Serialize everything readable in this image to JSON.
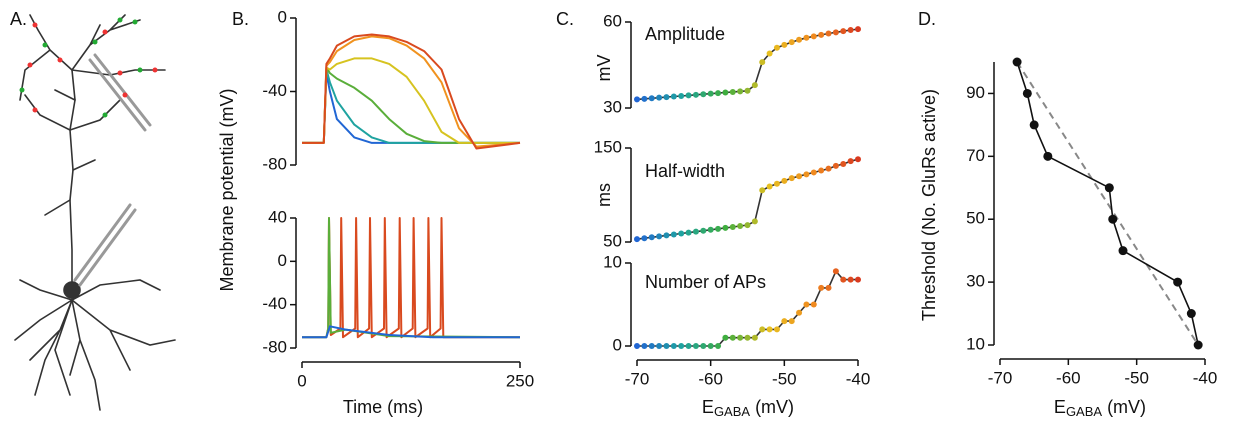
{
  "panels": [
    "A.",
    "B.",
    "C.",
    "D."
  ],
  "chart_data": [
    {
      "type": "line",
      "ylabel": "Membrane potential (mV)",
      "x": [
        0,
        25,
        28,
        32,
        40,
        60,
        80,
        100,
        120,
        140,
        160,
        180,
        200,
        250
      ],
      "xlim": [
        0,
        250
      ],
      "ylim": [
        -80,
        0
      ],
      "yticks": [
        0,
        -40,
        -80
      ],
      "series": [
        {
          "color": "#2166d4",
          "values": [
            -68,
            -68,
            -30,
            -40,
            -55,
            -65,
            -68,
            -68,
            -68,
            -68,
            -68,
            -68,
            -68,
            -68
          ]
        },
        {
          "color": "#1fa3a0",
          "values": [
            -68,
            -68,
            -28,
            -35,
            -45,
            -58,
            -65,
            -68,
            -68,
            -68,
            -68,
            -68,
            -68,
            -68
          ]
        },
        {
          "color": "#5aae3a",
          "values": [
            -68,
            -68,
            -27,
            -30,
            -33,
            -38,
            -45,
            -55,
            -63,
            -67,
            -68,
            -68,
            -68,
            -68
          ]
        },
        {
          "color": "#d6c320",
          "values": [
            -68,
            -68,
            -27,
            -28,
            -25,
            -22,
            -22,
            -25,
            -32,
            -45,
            -62,
            -68,
            -68,
            -68
          ]
        },
        {
          "color": "#f0921f",
          "values": [
            -68,
            -68,
            -26,
            -24,
            -18,
            -12,
            -10,
            -11,
            -15,
            -22,
            -35,
            -60,
            -70,
            -68
          ]
        },
        {
          "color": "#d94a1f",
          "values": [
            -68,
            -68,
            -25,
            -22,
            -15,
            -10,
            -9,
            -10,
            -13,
            -18,
            -28,
            -55,
            -71,
            -68
          ]
        }
      ]
    },
    {
      "type": "line",
      "xlabel": "Time (ms)",
      "xlim": [
        0,
        250
      ],
      "xticks": [
        0,
        250
      ],
      "ylim": [
        -80,
        40
      ],
      "yticks": [
        40,
        0,
        -40,
        -80
      ],
      "series": [
        {
          "color": "#d94a1f",
          "x": [
            0,
            28,
            30,
            31,
            33,
            44,
            45,
            47,
            61,
            62,
            64,
            77,
            78,
            80,
            94,
            95,
            97,
            111,
            112,
            114,
            127,
            128,
            130,
            144,
            145,
            147,
            159,
            160,
            162,
            180,
            250
          ],
          "values": [
            -70,
            -70,
            -62,
            40,
            -68,
            -62,
            40,
            -70,
            -62,
            40,
            -70,
            -62,
            40,
            -70,
            -62,
            40,
            -70,
            -62,
            40,
            -70,
            -62,
            40,
            -70,
            -62,
            40,
            -70,
            -62,
            40,
            -70,
            -70,
            -70
          ]
        },
        {
          "color": "#5aae3a",
          "x": [
            0,
            28,
            30,
            31,
            33,
            50,
            100,
            250
          ],
          "values": [
            -70,
            -70,
            -62,
            40,
            -66,
            -63,
            -69,
            -70
          ]
        },
        {
          "color": "#2166d4",
          "x": [
            0,
            28,
            32,
            50,
            100,
            150,
            250
          ],
          "values": [
            -70,
            -70,
            -60,
            -63,
            -68,
            -70,
            -70
          ]
        }
      ]
    },
    {
      "type": "line",
      "title": "Amplitude",
      "ylabel": "mV",
      "x": [
        -70,
        -69,
        -68,
        -67,
        -66,
        -65,
        -64,
        -63,
        -62,
        -61,
        -60,
        -59,
        -58,
        -57,
        -56,
        -55,
        -54,
        -53,
        -52,
        -51,
        -50,
        -49,
        -48,
        -47,
        -46,
        -45,
        -44,
        -43,
        -42,
        -41,
        -40
      ],
      "xlim": [
        -70,
        -40
      ],
      "ylim": [
        30,
        60
      ],
      "yticks": [
        30,
        60
      ],
      "colormap": [
        "#2166d4",
        "#1fa3a0",
        "#3fae3f",
        "#e8c020",
        "#f08a20",
        "#d93a1f"
      ],
      "series": [
        {
          "color": "#333333",
          "markers": true,
          "values": [
            33,
            33.2,
            33.4,
            33.6,
            33.8,
            34,
            34.2,
            34.4,
            34.6,
            34.8,
            35,
            35.2,
            35.4,
            35.6,
            35.8,
            36,
            38,
            46,
            49,
            51,
            52,
            53,
            53.8,
            54.5,
            55,
            55.5,
            56,
            56.4,
            56.8,
            57.2,
            57.5
          ]
        }
      ]
    },
    {
      "type": "line",
      "title": "Half-width",
      "ylabel": "ms",
      "x": [
        -70,
        -69,
        -68,
        -67,
        -66,
        -65,
        -64,
        -63,
        -62,
        -61,
        -60,
        -59,
        -58,
        -57,
        -56,
        -55,
        -54,
        -53,
        -52,
        -51,
        -50,
        -49,
        -48,
        -47,
        -46,
        -45,
        -44,
        -43,
        -42,
        -41,
        -40
      ],
      "xlim": [
        -70,
        -40
      ],
      "ylim": [
        50,
        150
      ],
      "yticks": [
        50,
        150
      ],
      "colormap": [
        "#2166d4",
        "#1fa3a0",
        "#3fae3f",
        "#e8c020",
        "#f08a20",
        "#d93a1f"
      ],
      "series": [
        {
          "color": "#333333",
          "markers": true,
          "values": [
            53,
            54,
            55,
            56,
            57,
            58,
            59,
            60,
            61,
            62,
            63,
            64,
            65,
            66,
            67,
            68,
            72,
            105,
            109,
            112,
            115,
            118,
            120,
            122,
            124,
            126,
            128,
            131,
            133,
            136,
            138
          ]
        }
      ]
    },
    {
      "type": "line",
      "title": "Number of APs",
      "xlabel": {
        "main": "E",
        "sub": "GABA",
        "unit": " (mV)"
      },
      "x": [
        -70,
        -69,
        -68,
        -67,
        -66,
        -65,
        -64,
        -63,
        -62,
        -61,
        -60,
        -59,
        -58,
        -57,
        -56,
        -55,
        -54,
        -53,
        -52,
        -51,
        -50,
        -49,
        -48,
        -47,
        -46,
        -45,
        -44,
        -43,
        -42,
        -41,
        -40
      ],
      "xlim": [
        -70,
        -40
      ],
      "xticks": [
        -70,
        -60,
        -50,
        -40
      ],
      "ylim": [
        0,
        10
      ],
      "yticks": [
        0,
        10
      ],
      "colormap": [
        "#2166d4",
        "#1fa3a0",
        "#3fae3f",
        "#e8c020",
        "#f08a20",
        "#d93a1f"
      ],
      "series": [
        {
          "color": "#333333",
          "markers": true,
          "values": [
            0,
            0,
            0,
            0,
            0,
            0,
            0,
            0,
            0,
            0,
            0,
            0,
            1,
            1,
            1,
            1,
            1,
            2,
            2,
            2,
            3,
            3,
            4,
            5,
            5,
            7,
            7,
            9,
            8,
            8,
            8
          ]
        }
      ]
    },
    {
      "type": "line",
      "ylabel": "Threshold (No. GluRs active)",
      "xlabel": {
        "main": "E",
        "sub": "GABA",
        "unit": " (mV)"
      },
      "xlim": [
        -70,
        -40
      ],
      "xticks": [
        -70,
        -60,
        -50,
        -40
      ],
      "ylim": [
        10,
        100
      ],
      "yticks": [
        10,
        30,
        50,
        70,
        90
      ],
      "series": [
        {
          "color": "#888888",
          "linestyle": "dashed",
          "x": [
            -67.5,
            -41
          ],
          "values": [
            100,
            10
          ]
        },
        {
          "color": "#111111",
          "markers": true,
          "x": [
            -67.5,
            -66,
            -65,
            -63,
            -54,
            -53.5,
            -52,
            -44,
            -42,
            -41
          ],
          "values": [
            100,
            90,
            80,
            70,
            60,
            50,
            40,
            30,
            20,
            10
          ]
        }
      ]
    }
  ]
}
